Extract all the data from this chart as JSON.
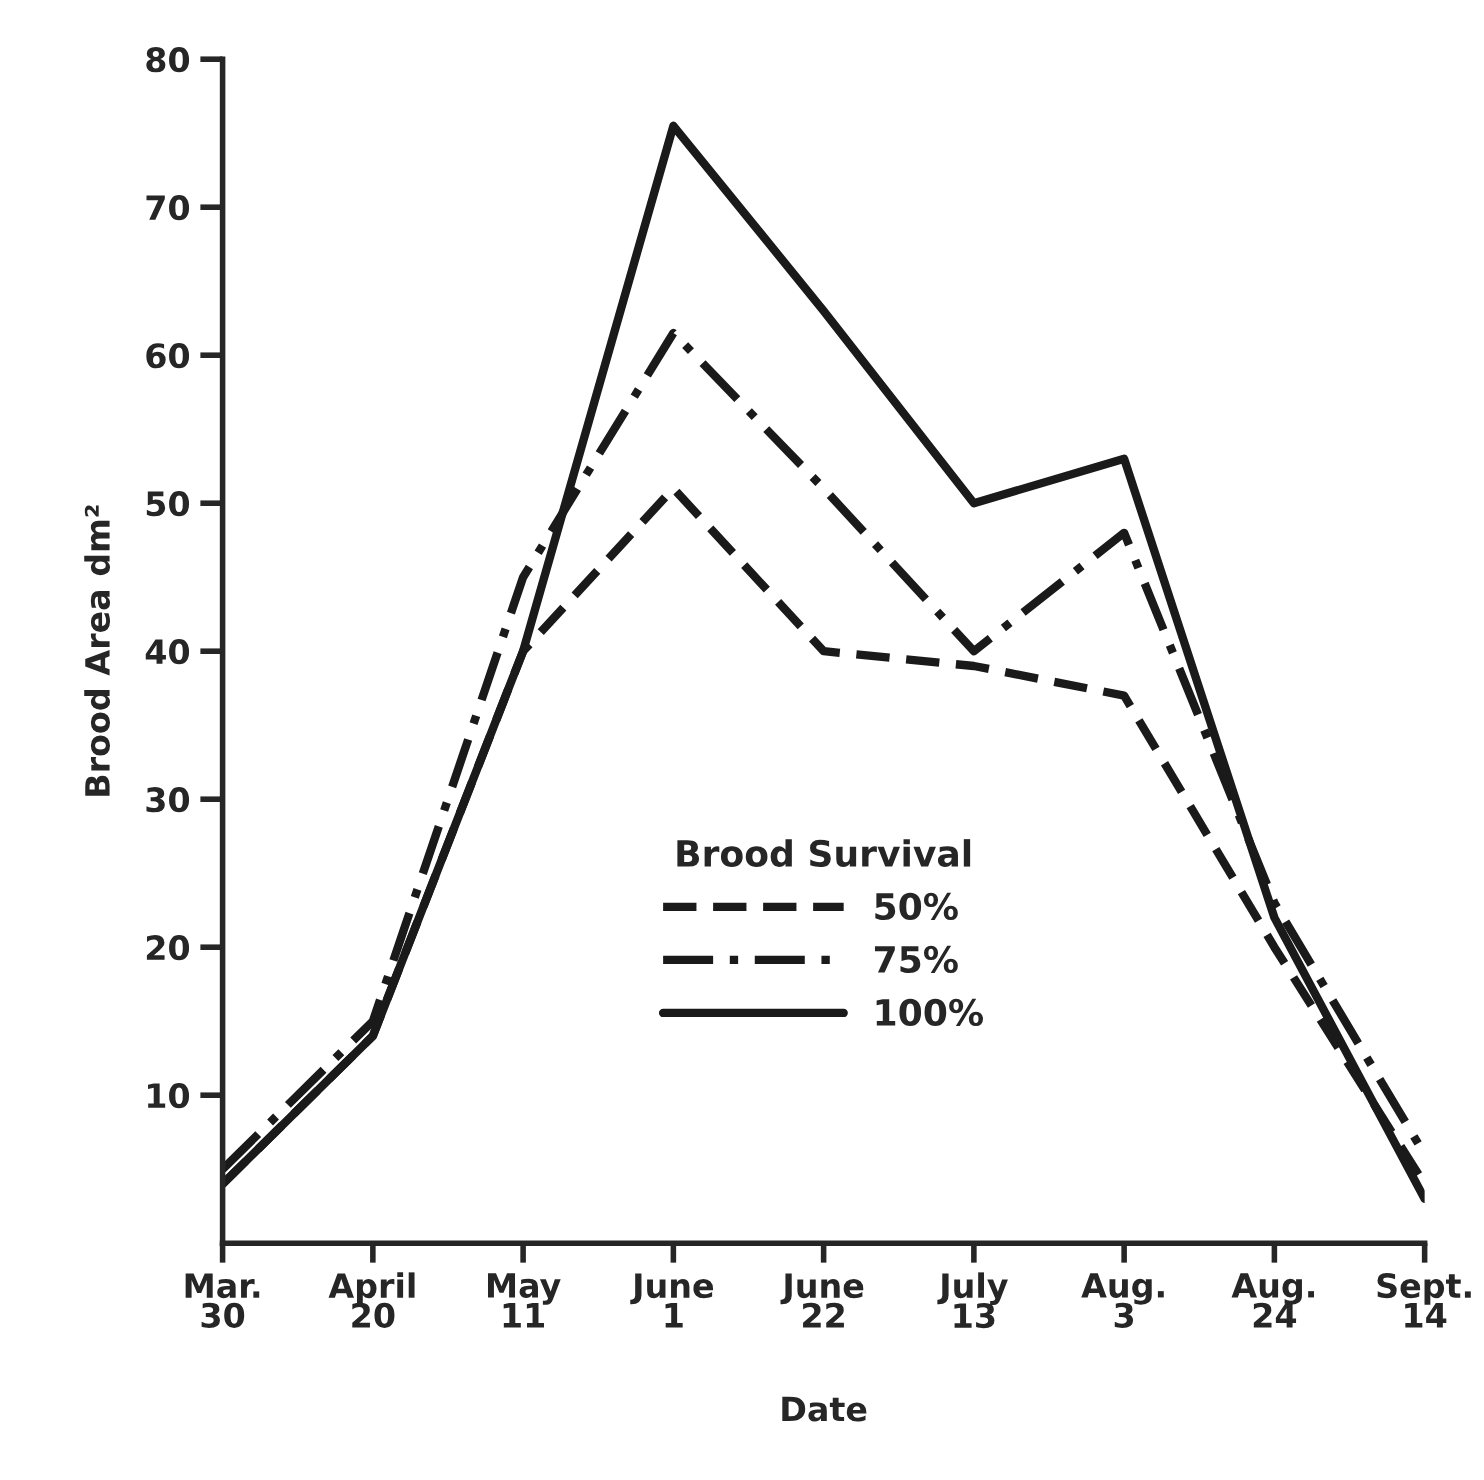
{
  "chart_data": {
    "type": "line",
    "xlabel": "Date",
    "ylabel": "Brood Area dm²",
    "legend_title": "Brood Survival",
    "categories": [
      "Mar.\n30",
      "April\n20",
      "May\n11",
      "June\n1",
      "June\n22",
      "July\n13",
      "Aug.\n3",
      "Aug.\n24",
      "Sept.\n14"
    ],
    "series": [
      {
        "name": "50%",
        "color": "#1a1a1a",
        "line_style": "dashed",
        "values": [
          4,
          14,
          40,
          51,
          40,
          39,
          37,
          20,
          4
        ]
      },
      {
        "name": "75%",
        "color": "#1a1a1a",
        "line_style": "dashdot",
        "values": [
          5,
          15,
          45,
          61.5,
          51,
          40,
          48,
          23,
          6
        ]
      },
      {
        "name": "100%",
        "color": "#1a1a1a",
        "line_style": "solid",
        "values": [
          4,
          14,
          40,
          75.5,
          63,
          50,
          53,
          22,
          3
        ]
      }
    ],
    "ylim": [
      0,
      80
    ],
    "yticks": [
      10,
      20,
      30,
      40,
      50,
      60,
      70,
      80
    ],
    "grid": false,
    "legend": "lower center",
    "marker": "none"
  }
}
